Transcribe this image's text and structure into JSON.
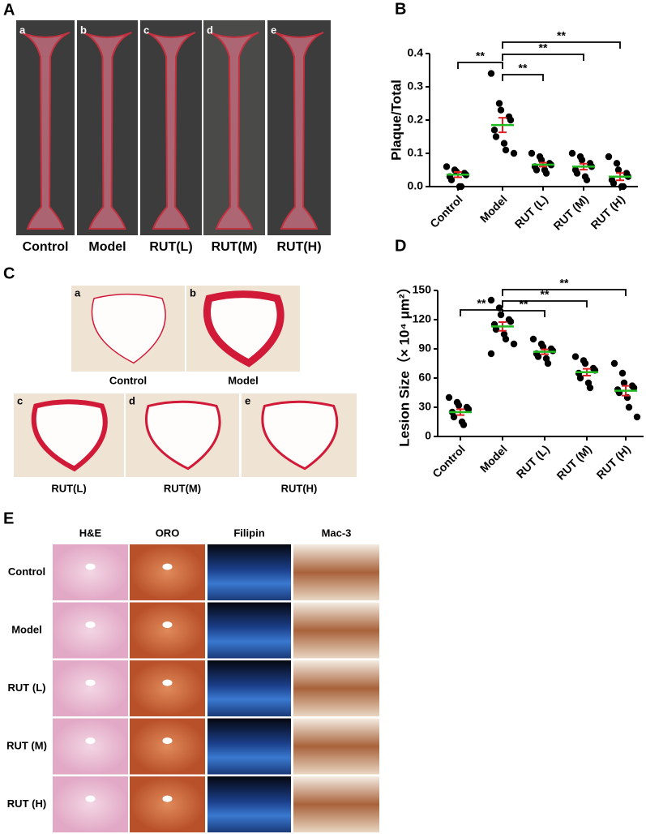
{
  "panel_a": {
    "label": "A",
    "images": [
      {
        "letter": "a",
        "caption": "Control"
      },
      {
        "letter": "b",
        "caption": "Model"
      },
      {
        "letter": "c",
        "caption": "RUT(L)"
      },
      {
        "letter": "d",
        "caption": "RUT(M)"
      },
      {
        "letter": "e",
        "caption": "RUT(H)"
      }
    ]
  },
  "panel_c": {
    "label": "C",
    "images": [
      {
        "letter": "a",
        "caption": "Control"
      },
      {
        "letter": "b",
        "caption": "Model"
      },
      {
        "letter": "c",
        "caption": "RUT(L)"
      },
      {
        "letter": "d",
        "caption": "RUT(M)"
      },
      {
        "letter": "e",
        "caption": "RUT(H)"
      }
    ]
  },
  "panel_e": {
    "label": "E",
    "columns": [
      "H&E",
      "ORO",
      "Filipin",
      "Mac-3"
    ],
    "rows": [
      "Control",
      "Model",
      "RUT (L)",
      "RUT (M)",
      "RUT (H)"
    ]
  },
  "chart_data": [
    {
      "type": "dot",
      "panel_label": "B",
      "y_label": "Plaque/Total",
      "categories": [
        "Control",
        "Model",
        "RUT (L)",
        "RUT (M)",
        "RUT (H)"
      ],
      "points": [
        [
          0.06,
          0.05,
          0.045,
          0.04,
          0.035,
          0.03,
          0.02,
          0.0,
          0.0
        ],
        [
          0.34,
          0.25,
          0.23,
          0.21,
          0.2,
          0.17,
          0.15,
          0.13,
          0.11,
          0.1
        ],
        [
          0.1,
          0.09,
          0.08,
          0.07,
          0.065,
          0.06,
          0.05,
          0.05,
          0.04
        ],
        [
          0.1,
          0.09,
          0.08,
          0.07,
          0.06,
          0.05,
          0.04,
          0.03,
          0.02
        ],
        [
          0.09,
          0.07,
          0.05,
          0.04,
          0.03,
          0.02,
          0.01,
          0.0,
          0.0
        ]
      ],
      "mean": [
        0.036,
        0.185,
        0.066,
        0.06,
        0.03
      ],
      "sem": [
        0.008,
        0.022,
        0.006,
        0.009,
        0.011
      ],
      "point_color": "#000000",
      "mean_color": "#22bb22",
      "error_color": "#e02020",
      "ylim": [
        0,
        0.4
      ],
      "yticks": [
        {
          "value": 0,
          "label": "0.0"
        },
        0.1,
        0.2,
        0.3,
        0.4
      ],
      "brackets": [
        {
          "from": "Control",
          "to": "Model",
          "label": "**"
        },
        {
          "from": "Model",
          "to": "RUT (L)",
          "label": "**"
        },
        {
          "from": "Model",
          "to": "RUT (M)",
          "label": "**"
        },
        {
          "from": "Model",
          "to": "RUT (H)",
          "label": "**"
        }
      ]
    },
    {
      "type": "dot",
      "panel_label": "D",
      "y_label": "Lesion Size（× 10⁴ μm²）",
      "categories": [
        "Control",
        "Model",
        "RUT (L)",
        "RUT (M)",
        "RUT (H)"
      ],
      "points": [
        [
          40,
          35,
          32,
          30,
          28,
          25,
          20,
          15,
          12
        ],
        [
          140,
          132,
          125,
          120,
          118,
          115,
          110,
          105,
          100,
          95,
          85
        ],
        [
          100,
          95,
          92,
          90,
          88,
          85,
          82,
          80,
          75
        ],
        [
          82,
          78,
          75,
          70,
          68,
          65,
          60,
          55,
          50
        ],
        [
          75,
          65,
          55,
          52,
          50,
          48,
          45,
          40,
          30,
          20
        ]
      ],
      "mean": [
        25,
        113,
        87,
        66,
        47
      ],
      "sem": [
        3,
        4.5,
        2.5,
        3.5,
        5
      ],
      "point_color": "#000000",
      "mean_color": "#22bb22",
      "error_color": "#e02020",
      "ylim": [
        0,
        150
      ],
      "yticks": [
        0,
        30,
        60,
        90,
        120,
        150
      ],
      "brackets": [
        {
          "from": "Control",
          "to": "Model",
          "label": "**"
        },
        {
          "from": "Model",
          "to": "RUT (L)",
          "label": "**"
        },
        {
          "from": "Model",
          "to": "RUT (M)",
          "label": "**"
        },
        {
          "from": "Model",
          "to": "RUT (H)",
          "label": "**"
        }
      ]
    }
  ]
}
